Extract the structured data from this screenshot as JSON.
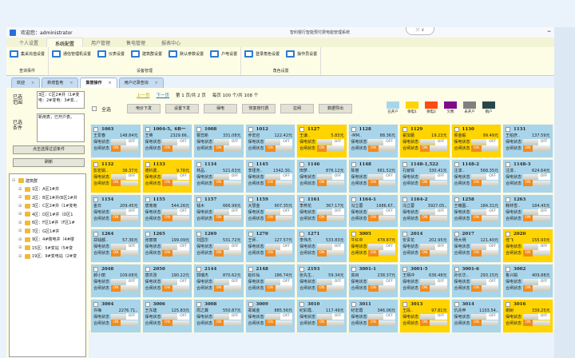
{
  "topbar": {
    "welcome": "欢迎您：administrator",
    "title": "智利银行智能预付费电能管理系统",
    "collapse": "⤫ ∨",
    "minimize": "−"
  },
  "ribbon_tabs": [
    "个人设置",
    "系统配置",
    "用户管理",
    "售电管理",
    "报表中心"
  ],
  "ribbon_active": 1,
  "ribbon_groups": [
    {
      "label": "查询事件",
      "items": [
        "集采充值设置"
      ]
    },
    {
      "label": "设备管理",
      "items": [
        "通信管理机设置",
        "仪表设置",
        "建筑群设置",
        "默认参数设置",
        "户电设置"
      ]
    },
    {
      "label": "角色设置",
      "items": [
        "登录角色设置",
        "操作员设置"
      ]
    }
  ],
  "doc_tabs": [
    "欢迎",
    "新增售电",
    "集管操作",
    "用户记录查询"
  ],
  "doc_active": 2,
  "left": {
    "range_label": "已选范围",
    "range_value": "3区：C区2#井（1#变电：2#变电：3#变...",
    "cond_label": "已选条件",
    "cond_value": "新用表，已开户表。",
    "filter_button": "点击选择过滤条件",
    "refresh_button": "刷新",
    "tree_root": "建筑群",
    "tree": [
      "1区：A区1#井",
      "2区：B区1#井(B区1#井",
      "3区：C区2#井（1#变电",
      "4区：D区1#井（D区1",
      "6区：F区1#井（F区1#",
      "7区：G区1#井",
      "9区：4#楼电井（4#楼",
      "15区：5#变站（5#变",
      "19区：9#变电站（2#变"
    ]
  },
  "pager": {
    "prev": "上一页",
    "next": "下一页",
    "page": "第 1 页/共 2 页",
    "per": "每页 100 个/共 108 个"
  },
  "toolbar": {
    "select_all": "全选",
    "buttons": [
      "电价下发",
      "设置下发",
      "保电",
      "恢复按付费",
      "拉闸",
      "数据导出"
    ]
  },
  "legend": [
    {
      "label": "已开户",
      "color": "#a9d5ea"
    },
    {
      "label": "保电1",
      "color": "#ffd400"
    },
    {
      "label": "保电2",
      "color": "#ff4a12"
    },
    {
      "label": "欠费",
      "color": "#7d0b8c"
    },
    {
      "label": "未开户",
      "color": "#808080"
    },
    {
      "label": "销户",
      "color": "#28474a"
    }
  ],
  "card_labels": {
    "power": "保电状态",
    "switch": "合闸状态",
    "off": "OFF",
    "on": "ON"
  },
  "cards": [
    [
      "1003",
      "王爱春",
      "148.84元",
      "已开户"
    ],
    [
      "1004-5、6R一",
      "王英",
      "2329.66..",
      "已开户"
    ],
    [
      "1008",
      "曹蕊新",
      "331.08元",
      "已开户"
    ],
    [
      "1012",
      "乔宏召",
      "122.42元",
      "已开户"
    ],
    [
      "1127",
      "王谦..",
      "5.83元",
      "保电1"
    ],
    [
      "1128",
      "-MM..",
      "88.36元",
      "已开户"
    ],
    [
      "1129",
      "翟加蕾",
      "19.23元",
      "保电1"
    ],
    [
      "1130",
      "侯金毅",
      "99.49元",
      "保电1"
    ],
    [
      "1131",
      "王柏彦..",
      "137.59元",
      "已开户"
    ],
    [
      "1132",
      "彭宏娟..",
      "36.37元",
      "保电1"
    ],
    [
      "1133",
      "德科勇..",
      "9.78元",
      "保电1"
    ],
    [
      "1134",
      "林品..",
      "521.63元",
      "已开户"
    ],
    [
      "1145",
      "李瑾尧..",
      "1542.30..",
      "已开户"
    ],
    [
      "1146",
      "田梦..",
      "876.12元",
      "已开户"
    ],
    [
      "1148",
      "陈丽",
      "681.52元",
      "已开户"
    ],
    [
      "1148-1,522",
      "孔敏铁",
      "330.41元",
      "已开户"
    ],
    [
      "1148-2",
      "注漆..",
      "568.35元",
      "已开户"
    ],
    [
      "1148-3",
      "注漆..",
      "624.64元",
      "已开户"
    ],
    [
      "1154",
      "金日",
      "209.45元",
      "已开户"
    ],
    [
      "1155",
      "唐南南",
      "544.26元",
      "已开户"
    ],
    [
      "1157",
      "钱木",
      "666.99元",
      "已开户"
    ],
    [
      "1159",
      "大慧金",
      "907.35元",
      "已开户"
    ],
    [
      "1161",
      "李燕花",
      "367.17元",
      "已开户"
    ],
    [
      "1164-1",
      "冯立蓉",
      "1686.67..",
      "已开户"
    ],
    [
      "1164-2",
      "冯立蓉",
      "3927.05..",
      "已开户"
    ],
    [
      "1258",
      "王曦图..",
      "184.31元",
      "已开户"
    ],
    [
      "1263",
      "韩林雪..",
      "184.45元",
      "已开户"
    ],
    [
      "1264",
      "郑钱都..",
      "57.36元",
      "已开户"
    ],
    [
      "1265",
      "张丽丽",
      "199.09元",
      "已开户"
    ],
    [
      "1269",
      "刘国华",
      "531.72元",
      "已开户"
    ],
    [
      "1270",
      "王师..",
      "127.57元",
      "已开户"
    ],
    [
      "1271",
      "李伟杰",
      "533.83元",
      "已开户"
    ],
    [
      "3005",
      "牛红中",
      "478.87元",
      "保电1"
    ],
    [
      "2014",
      "安贵花",
      "202.95元",
      "已开户"
    ],
    [
      "2017",
      "杨大明",
      "121.40元",
      "已开户"
    ],
    [
      "2020",
      "佳飞",
      "155.93元",
      "保电1"
    ],
    [
      "2048",
      "郝小丽",
      "109.68元",
      "已开户"
    ],
    [
      "2050",
      "唐农改",
      "190.22元",
      "已开户"
    ],
    [
      "2144",
      "郭瑞杰",
      "870.62元",
      "已开户"
    ],
    [
      "2148",
      "赵红仙",
      "186.74元",
      "已开户"
    ],
    [
      "2193",
      "张先生..",
      "59.34元",
      "已开户"
    ],
    [
      "3001-1",
      "高目",
      "238.37元",
      "已开户"
    ],
    [
      "3001-5",
      "王柄冲",
      "636.48元",
      "已开户"
    ],
    [
      "3001-6",
      "孙长华..",
      "293.15元",
      "已开户"
    ],
    [
      "3002",
      "鲁兴娟",
      "409.88元",
      "已开户"
    ],
    [
      "3004",
      "许梅",
      "2276.71..",
      "已开户"
    ],
    [
      "3006",
      "王东建",
      "125.83元",
      "已开户"
    ],
    [
      "3008",
      "周之翼",
      "550.87元",
      "已开户"
    ],
    [
      "3009",
      "郑威金",
      "885.56元",
      "已开户"
    ],
    [
      "3010",
      "纪彩霞..",
      "117.49元",
      "已开户"
    ],
    [
      "3011",
      "纪宏霞",
      "346.06元",
      "已开户"
    ],
    [
      "3013",
      "王段..",
      "97.81元",
      "保电1"
    ],
    [
      "3014",
      "仇兆申",
      "1103.54..",
      "已开户"
    ],
    [
      "3016",
      "谢树",
      "339.25元",
      "保电1"
    ]
  ]
}
